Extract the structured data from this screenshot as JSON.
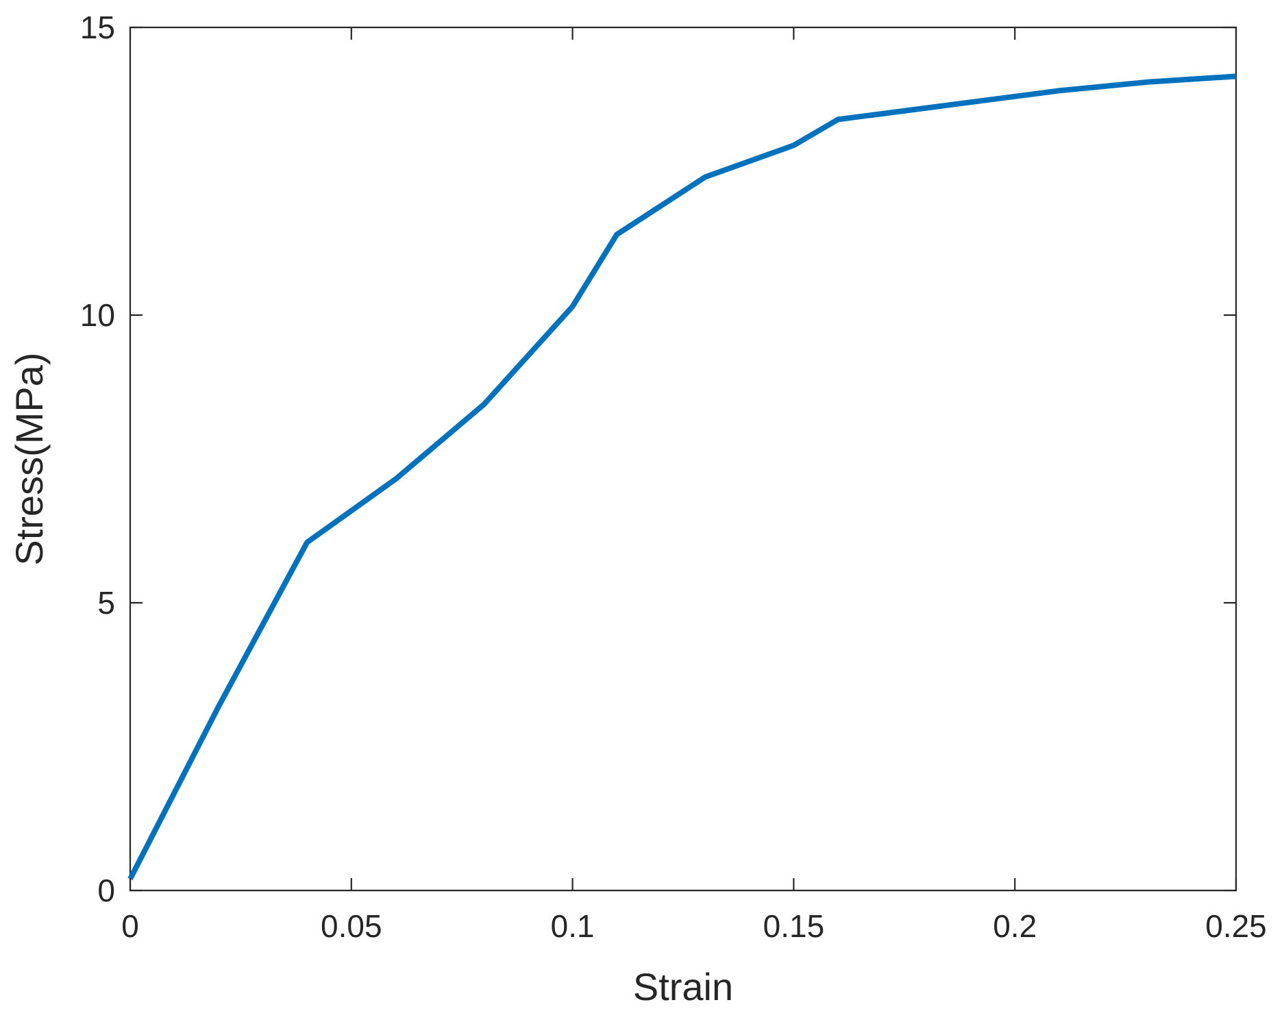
{
  "chart_data": {
    "type": "line",
    "title": "",
    "xlabel": "Strain",
    "ylabel": "Stress(MPa)",
    "xlim": [
      0,
      0.25
    ],
    "ylim": [
      0,
      15
    ],
    "xticks": [
      0,
      0.05,
      0.1,
      0.15,
      0.2,
      0.25
    ],
    "xtick_labels": [
      "0",
      "0.05",
      "0.1",
      "0.15",
      "0.2",
      "0.25"
    ],
    "yticks": [
      0,
      5,
      10,
      15
    ],
    "ytick_labels": [
      "0",
      "5",
      "10",
      "15"
    ],
    "grid": false,
    "box": true,
    "series": [
      {
        "color": "#0072BD",
        "x": [
          0,
          0.02,
          0.04,
          0.06,
          0.08,
          0.1,
          0.11,
          0.13,
          0.15,
          0.16,
          0.18,
          0.2,
          0.21,
          0.23,
          0.25
        ],
        "y": [
          0.2,
          3.2,
          6.05,
          7.15,
          8.45,
          10.15,
          11.4,
          12.4,
          12.95,
          13.4,
          13.6,
          13.8,
          13.9,
          14.05,
          14.15
        ]
      }
    ]
  }
}
